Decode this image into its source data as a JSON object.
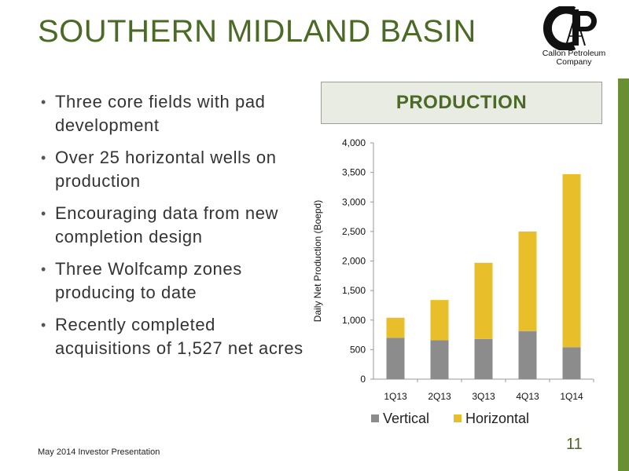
{
  "slide": {
    "title": "SOUTHERN MIDLAND BASIN",
    "logo_text_line1": "Callon Petroleum",
    "logo_text_line2": "Company",
    "bullets": [
      "Three core fields with pad development",
      "Over 25 horizontal wells on production",
      "Encouraging data from new completion design",
      "Three Wolfcamp zones producing to date",
      "Recently completed acquisitions of 1,527 net acres"
    ],
    "production_header": "PRODUCTION",
    "footer": "May 2014 Investor Presentation",
    "page_number": "11"
  },
  "colors": {
    "title_green": "#4a6a26",
    "accent_bar": "#6a8e34",
    "vertical": "#8c8c8c",
    "horizontal": "#e8be2a"
  },
  "chart_data": {
    "type": "bar",
    "stacked": true,
    "categories": [
      "1Q13",
      "2Q13",
      "3Q13",
      "4Q13",
      "1Q14"
    ],
    "series": [
      {
        "name": "Vertical",
        "values": [
          700,
          660,
          680,
          810,
          540
        ]
      },
      {
        "name": "Horizontal",
        "values": [
          340,
          680,
          1290,
          1690,
          2930
        ]
      }
    ],
    "ylabel": "Daily Net Production (Boepd)",
    "ylim": [
      0,
      4000
    ],
    "yticks": [
      0,
      500,
      1000,
      1500,
      2000,
      2500,
      3000,
      3500,
      4000
    ],
    "ytick_labels": [
      "0",
      "500",
      "1,000",
      "1,500",
      "2,000",
      "2,500",
      "3,000",
      "3,500",
      "4,000"
    ],
    "grid": false,
    "legend_position": "bottom"
  }
}
